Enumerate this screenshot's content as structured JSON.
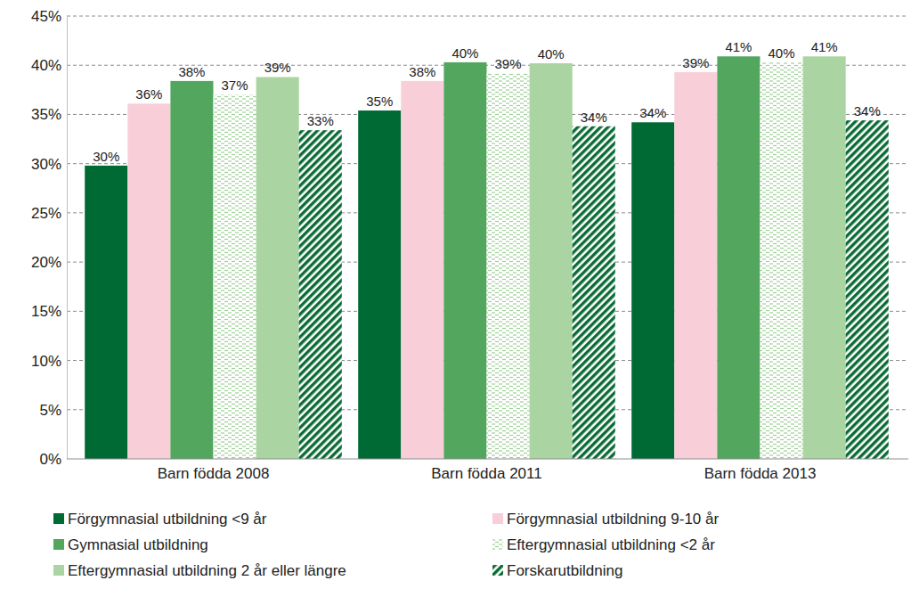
{
  "chart_data": {
    "type": "bar",
    "categories": [
      "Barn födda 2008",
      "Barn födda 2011",
      "Barn födda 2013"
    ],
    "series": [
      {
        "name": "Förgymnasial utbildning  <9 år",
        "color": "#006a35",
        "values": [
          29.8,
          35.4,
          34.2
        ],
        "value_labels": [
          "30%",
          "35%",
          "34%"
        ]
      },
      {
        "name": "Förgymnasial utbildning 9-10 år",
        "color": "#f8cfd9",
        "values": [
          36.1,
          38.4,
          39.3
        ],
        "value_labels": [
          "36%",
          "38%",
          "39%"
        ]
      },
      {
        "name": "Gymnasial utbildning",
        "color": "#52a65e",
        "values": [
          38.4,
          40.3,
          40.9
        ],
        "value_labels": [
          "38%",
          "40%",
          "41%"
        ]
      },
      {
        "name": "Eftergymnasial utbildning <2 år",
        "color": "#9fcf98",
        "values": [
          37.0,
          39.2,
          40.3
        ],
        "value_labels": [
          "37%",
          "39%",
          "40%"
        ]
      },
      {
        "name": "Eftergymnasial utbildning 2 år eller längre",
        "color": "#aad5a2",
        "values": [
          38.8,
          40.2,
          40.9
        ],
        "value_labels": [
          "39%",
          "40%",
          "41%"
        ]
      },
      {
        "name": "Forskarutbildning",
        "color": "#0b6b36",
        "values": [
          33.4,
          33.8,
          34.4
        ],
        "value_labels": [
          "33%",
          "34%",
          "34%"
        ]
      }
    ],
    "ylim": [
      0,
      45
    ],
    "yticks": [
      {
        "value": 0,
        "label": "0%"
      },
      {
        "value": 5,
        "label": "5%"
      },
      {
        "value": 10,
        "label": "10%"
      },
      {
        "value": 15,
        "label": "15%"
      },
      {
        "value": 20,
        "label": "20%"
      },
      {
        "value": 25,
        "label": "25%"
      },
      {
        "value": 30,
        "label": "30%"
      },
      {
        "value": 35,
        "label": "35%"
      },
      {
        "value": 40,
        "label": "40%"
      },
      {
        "value": 45,
        "label": "45%"
      }
    ],
    "grid": true,
    "data_labels": true,
    "legend": "bottom"
  }
}
